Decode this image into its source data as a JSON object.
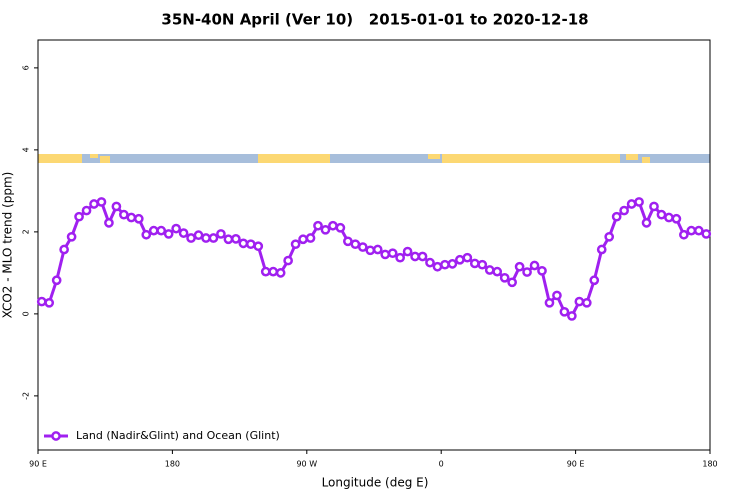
{
  "chart_data": {
    "type": "line",
    "title": "35N-40N April (Ver 10)   2015-01-01 to 2020-12-18",
    "x_label": "Longitude (deg E)",
    "y_label": "XCO2 - MLO trend (ppm)",
    "x": [
      92.5,
      97.5,
      102.5,
      107.5,
      112.5,
      117.5,
      122.5,
      127.5,
      132.5,
      137.5,
      142.5,
      147.5,
      152.5,
      157.5,
      162.5,
      167.5,
      172.5,
      177.5,
      182.5,
      187.5,
      192.5,
      197.5,
      202.5,
      207.5,
      212.5,
      217.5,
      222.5,
      227.5,
      232.5,
      237.5,
      242.5,
      247.5,
      252.5,
      257.5,
      262.5,
      267.5,
      272.5,
      277.5,
      282.5,
      287.5,
      292.5,
      297.5,
      302.5,
      307.5,
      312.5,
      317.5,
      322.5,
      327.5,
      332.5,
      337.5,
      342.5,
      347.5,
      352.5,
      357.5,
      362.5,
      367.5,
      372.5,
      377.5,
      382.5,
      387.5,
      392.5,
      397.5,
      402.5,
      407.5,
      412.5,
      417.5,
      422.5,
      427.5,
      432.5,
      437.5,
      442.5,
      447.5,
      452.5,
      457.5,
      462.5,
      467.5,
      472.5,
      477.5,
      482.5,
      487.5,
      492.5,
      497.5,
      502.5,
      507.5,
      512.5,
      517.5,
      522.5,
      527.5,
      532.5,
      537.5
    ],
    "series": [
      {
        "name": "Land (Nadir&Glint) and Ocean (Glint)",
        "color": "#a020f0",
        "values": [
          0.3,
          0.27,
          0.82,
          1.57,
          1.88,
          2.37,
          2.52,
          2.68,
          2.73,
          2.22,
          2.62,
          2.42,
          2.35,
          2.32,
          1.93,
          2.03,
          2.03,
          1.95,
          2.08,
          1.97,
          1.85,
          1.92,
          1.85,
          1.85,
          1.95,
          1.82,
          1.83,
          1.72,
          1.7,
          1.65,
          1.03,
          1.03,
          1.0,
          1.3,
          1.7,
          1.82,
          1.85,
          2.15,
          2.05,
          2.15,
          2.1,
          1.77,
          1.7,
          1.63,
          1.55,
          1.57,
          1.45,
          1.48,
          1.37,
          1.52,
          1.4,
          1.4,
          1.25,
          1.15,
          1.2,
          1.22,
          1.32,
          1.37,
          1.23,
          1.2,
          1.07,
          1.03,
          0.88,
          0.77,
          1.15,
          1.02,
          1.18,
          1.05,
          0.27,
          0.45,
          0.05,
          -0.05,
          0.3,
          0.27,
          0.82,
          1.57,
          1.88,
          2.37,
          2.52,
          2.68,
          2.73,
          2.22,
          2.62,
          2.42,
          2.35,
          2.32,
          1.93,
          2.03,
          2.03,
          1.95
        ]
      }
    ],
    "xlim": [
      90,
      540
    ],
    "xticks": [
      {
        "value": 90,
        "label": "90 E"
      },
      180,
      {
        "value": 270,
        "label": "90 W"
      },
      {
        "value": 360,
        "label": "0"
      },
      {
        "value": 450,
        "label": "90 E"
      },
      180
    ],
    "ylim": [
      -3.32,
      6.68
    ],
    "yticks": [
      -2,
      0,
      2,
      4,
      6
    ],
    "legend": "bottom-left"
  }
}
